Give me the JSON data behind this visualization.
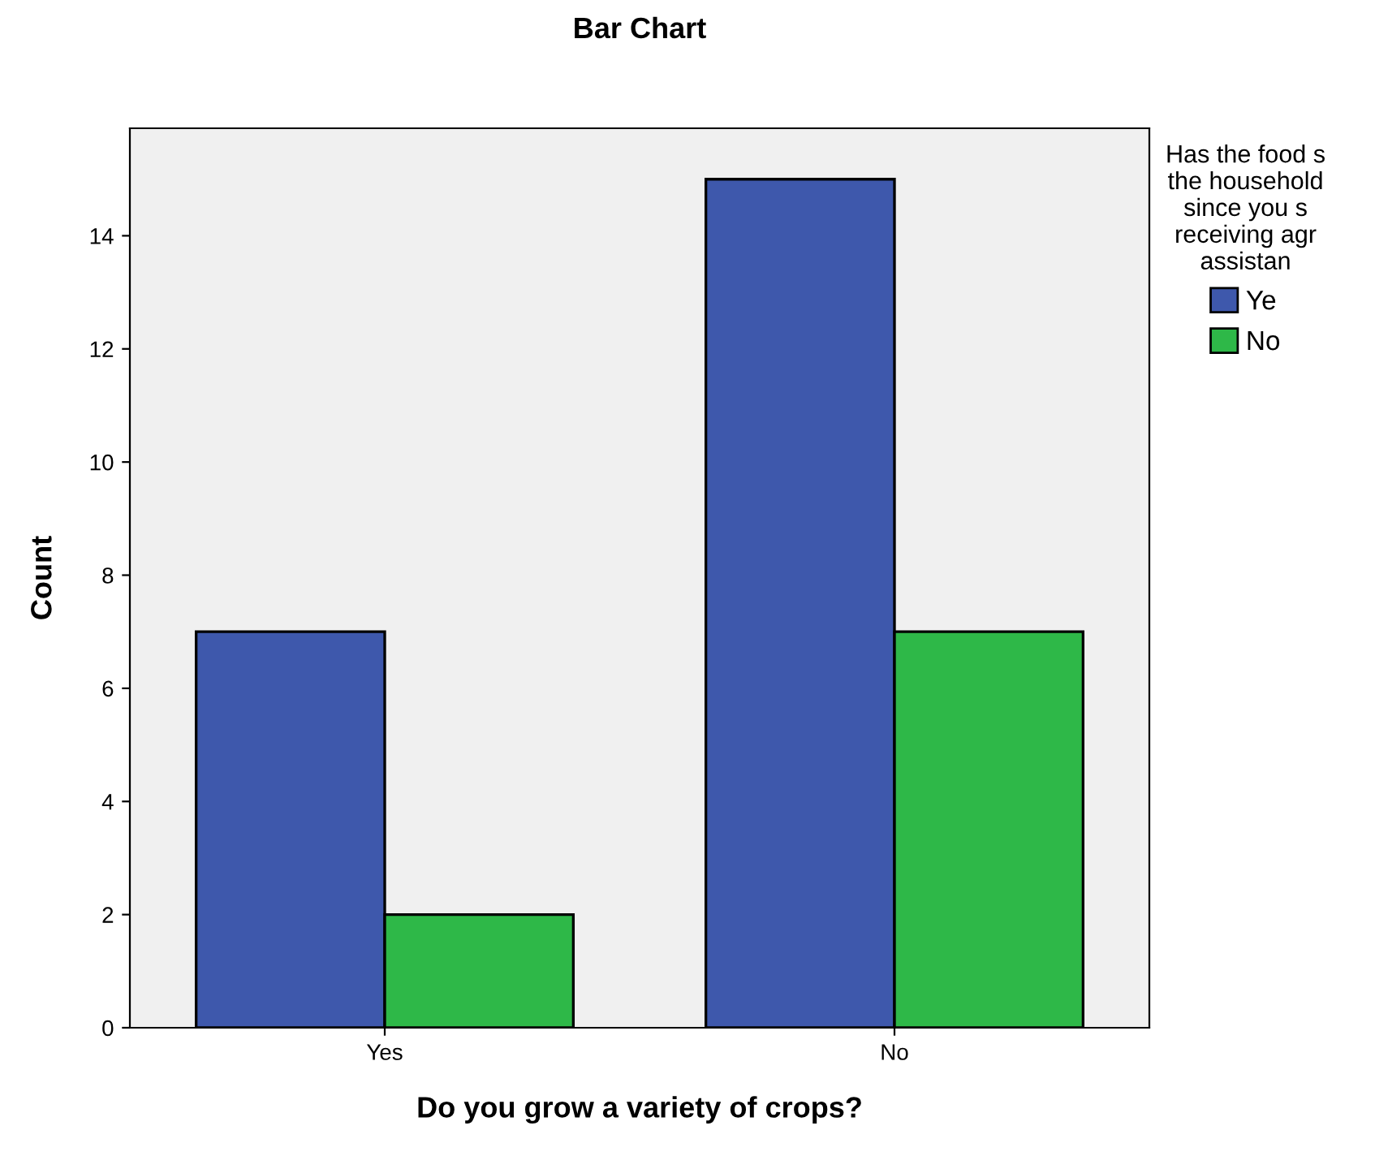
{
  "chart_data": {
    "type": "bar",
    "title": "Bar Chart",
    "xlabel": "Do you grow a variety of crops?",
    "ylabel": "Count",
    "categories": [
      "Yes",
      "No"
    ],
    "series": [
      {
        "name": "Ye",
        "color": "#3e58ac",
        "values": [
          7,
          15
        ]
      },
      {
        "name": "No",
        "color": "#2eb848",
        "values": [
          2,
          7
        ]
      }
    ],
    "legend_title": "Has the food s\nthe household\nsince you s\nreceiving agr\nassistan",
    "legend": "right",
    "grid": false,
    "ylim": [
      0,
      15.9
    ],
    "yticks": [
      0,
      2,
      4,
      6,
      8,
      10,
      12,
      14
    ]
  }
}
